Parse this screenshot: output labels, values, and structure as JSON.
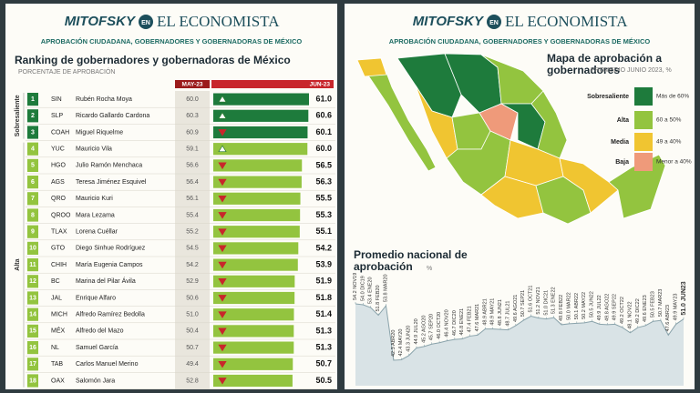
{
  "header": {
    "brand": "MITOFSKY",
    "connector": "EN",
    "publication": "EL ECONOMISTA",
    "subtitle": "APROBACIÓN CIUDADANA, GOBERNADORES Y GOBERNADORAS DE MÉXICO"
  },
  "chart_data": [
    {
      "type": "bar",
      "title": "Ranking de gobernadores y gobernadoras de México",
      "subtitle": "PORCENTAJE DE APROBACIÓN",
      "ranks": [
        1,
        2,
        3,
        4,
        5,
        6,
        7,
        8,
        9,
        10,
        11,
        12,
        13,
        14,
        15,
        16,
        17,
        18
      ],
      "states": [
        "SIN",
        "SLP",
        "COAH",
        "YUC",
        "HGO",
        "AGS",
        "QRO",
        "QROO",
        "TLAX",
        "GTO",
        "CHIH",
        "BC",
        "JAL",
        "MICH",
        "MÉX",
        "NL",
        "TAB",
        "OAX"
      ],
      "categories": [
        "Rubén Rocha Moya",
        "Ricardo Gallardo Cardona",
        "Miguel Riquelme",
        "Mauricio Vila",
        "Julio Ramón Menchaca",
        "Teresa Jiménez Esquivel",
        "Mauricio Kuri",
        "Mara Lezama",
        "Lorena Cuéllar",
        "Diego Sinhue Rodríguez",
        "María Eugenia Campos",
        "Marina del Pilar Ávila",
        "Enrique Alfaro",
        "Alfredo Ramírez Bedolla",
        "Alfredo del Mazo",
        "Samuel García",
        "Carlos Manuel Merino",
        "Salomón Jara"
      ],
      "groups": [
        "Sobresaliente",
        "Sobresaliente",
        "Sobresaliente",
        "Alta",
        "Alta",
        "Alta",
        "Alta",
        "Alta",
        "Alta",
        "Alta",
        "Alta",
        "Alta",
        "Alta",
        "Alta",
        "Alta",
        "Alta",
        "Alta",
        "Alta"
      ],
      "group_colors": {
        "Sobresaliente": "#1e7b3c",
        "Alta": "#93c43f"
      },
      "trend": [
        "up",
        "up",
        "down",
        "up",
        "down",
        "down",
        "down",
        "down",
        "down",
        "down",
        "down",
        "down",
        "down",
        "down",
        "down",
        "down",
        "down",
        "down"
      ],
      "series": [
        {
          "name": "MAY-23",
          "color": "#9b1b1b",
          "values": [
            60.0,
            60.3,
            60.9,
            59.1,
            56.6,
            56.4,
            56.1,
            55.4,
            55.2,
            54.5,
            54.2,
            52.9,
            50.6,
            51.0,
            50.4,
            50.7,
            49.4,
            52.8
          ],
          "value_labels": [
            "60.0",
            "60.3",
            "60.9",
            "59.1",
            "56.6",
            "56.4",
            "56.1",
            "55.4",
            "55.2",
            "54.5",
            "54.2",
            "52.9",
            "50.6",
            "51.0",
            "50.4",
            "50.7",
            "49.4",
            "52.8"
          ]
        },
        {
          "name": "JUN-23",
          "color": "#c8262b",
          "values": [
            61.0,
            60.6,
            60.1,
            60.0,
            56.5,
            56.3,
            55.5,
            55.3,
            55.1,
            54.2,
            53.9,
            51.9,
            51.8,
            51.4,
            51.3,
            51.3,
            50.7,
            50.5
          ],
          "value_labels": [
            "61.0",
            "60.6",
            "60.1",
            "60.0",
            "56.5",
            "56.3",
            "55.5",
            "55.3",
            "55.1",
            "54.2",
            "53.9",
            "51.9",
            "51.8",
            "51.4",
            "51.3",
            "51.3",
            "50.7",
            "50.5"
          ]
        }
      ]
    },
    {
      "type": "map",
      "title": "Mapa de aprobación a gobernadores",
      "subtitle": "PROMEDIO JUNIO 2023, %",
      "legend": [
        {
          "name": "Sobresaliente",
          "label": "Más de 60%",
          "color": "#1e7b3c"
        },
        {
          "name": "Alta",
          "label": "60 a 50%",
          "color": "#93c43f"
        },
        {
          "name": "Media",
          "label": "49 a 40%",
          "color": "#f0c531"
        },
        {
          "name": "Baja",
          "label": "Menor a 40%",
          "color": "#ef9a7a"
        }
      ]
    },
    {
      "type": "area",
      "title": "Promedio nacional de aprobación",
      "subtitle": "%",
      "color": "#d9e3e6",
      "categories": [
        "NOV19",
        "DIC19",
        "ENE20",
        "FEB20",
        "MAR20",
        "ABR20",
        "MAY20",
        "JUN20",
        "JUL20",
        "AGO20",
        "SEP20",
        "OCT20",
        "NOV20",
        "DIC20",
        "ENE21",
        "FEB21",
        "MAR21",
        "ABR21",
        "MAY21",
        "JUN21",
        "JUL21",
        "AGO21",
        "SEP21",
        "OCT21",
        "NOV21",
        "DIC21",
        "ENE22",
        "FEB22",
        "MAR22",
        "ABR22",
        "MAY22",
        "JUN22",
        "JUL22",
        "AGO22",
        "SEP22",
        "OCT22",
        "NOV22",
        "DIC22",
        "ENE23",
        "FEB23",
        "MAR23",
        "ABR23",
        "MAY23",
        "JUN23"
      ],
      "values": [
        54.2,
        54.0,
        53.4,
        51.8,
        53.8,
        42.3,
        42.4,
        43.3,
        44.9,
        45.2,
        45.7,
        46.0,
        46.4,
        46.7,
        46.8,
        47.4,
        47.6,
        48.9,
        48.9,
        48.8,
        48.7,
        49.6,
        50.7,
        51.6,
        51.2,
        51.0,
        51.3,
        49.8,
        50.0,
        50.1,
        50.2,
        50.5,
        49.9,
        49.8,
        49.9,
        49.2,
        48.1,
        49.2,
        49.6,
        50.5,
        50.7,
        47.6,
        49.9,
        51.0
      ],
      "value_labels": [
        "54.2",
        "54.0",
        "53.4",
        "51.8",
        "53.8",
        "42.3",
        "42.4",
        "43.3",
        "44.9",
        "45.2",
        "45.7",
        "46.0",
        "46.4",
        "46.7",
        "46.8",
        "47.4",
        "47.6",
        "48.9",
        "48.9",
        "48.8",
        "48.7",
        "49.6",
        "50.7",
        "51.6",
        "51.2",
        "51.0",
        "51.3",
        "49.8",
        "50.0",
        "50.1",
        "50.2",
        "50.5",
        "49.9",
        "49.8",
        "49.9",
        "49.2",
        "48.1",
        "49.2",
        "49.6",
        "50.5",
        "50.7",
        "47.6",
        "49.9",
        "51.0"
      ]
    }
  ]
}
